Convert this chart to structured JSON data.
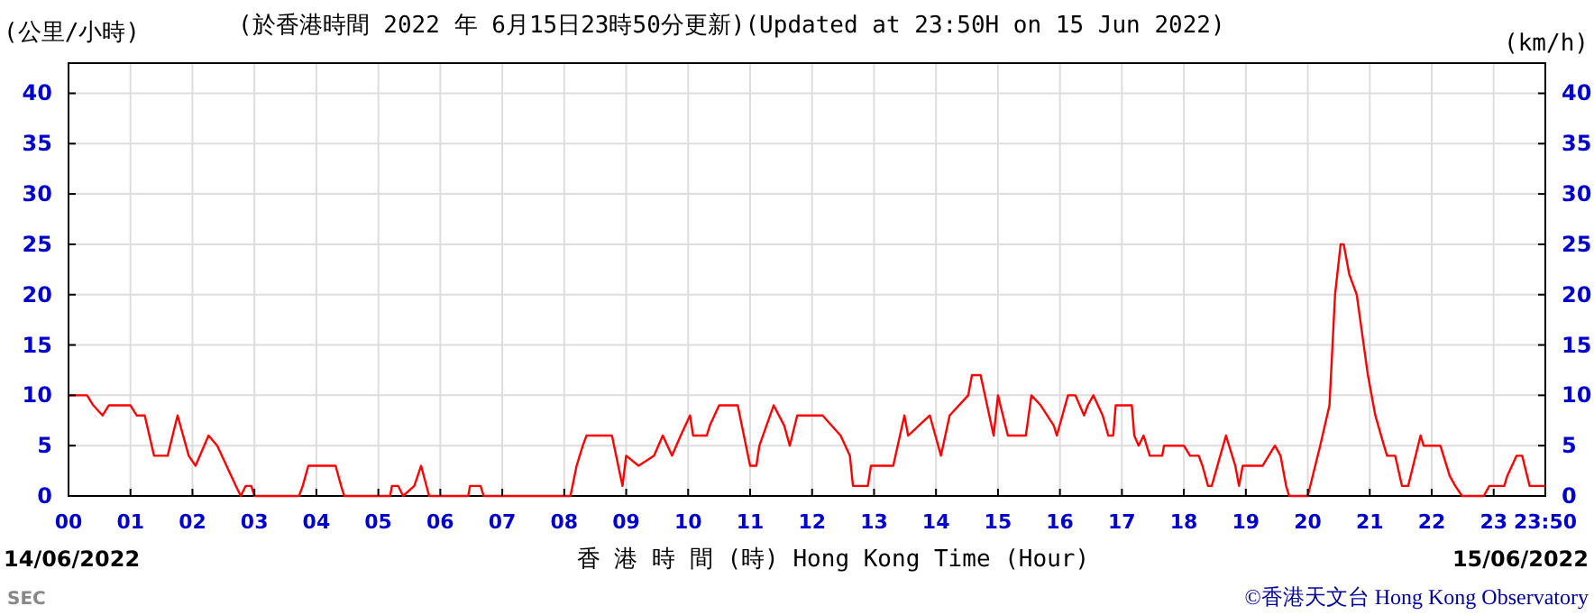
{
  "chart_data": {
    "type": "line",
    "title": "(於香港時間 2022 年 6月15日23時50分更新)(Updated at 23:50H on 15 Jun 2022)",
    "ylabel": "(公里/小時)",
    "y2label": "(km/h)",
    "xlabel": "香 港 時 間 (時) Hong Kong Time (Hour)",
    "annotations": [
      "14/06/2022",
      "15/06/2022",
      "SEC",
      "©香港天文台 Hong Kong Observatory"
    ],
    "xlim": [
      0,
      23.8333
    ],
    "xticks": [
      {
        "value": 0,
        "label": "00"
      },
      {
        "value": 1,
        "label": "01"
      },
      {
        "value": 2,
        "label": "02"
      },
      {
        "value": 3,
        "label": "03"
      },
      {
        "value": 4,
        "label": "04"
      },
      {
        "value": 5,
        "label": "05"
      },
      {
        "value": 6,
        "label": "06"
      },
      {
        "value": 7,
        "label": "07"
      },
      {
        "value": 8,
        "label": "08"
      },
      {
        "value": 9,
        "label": "09"
      },
      {
        "value": 10,
        "label": "10"
      },
      {
        "value": 11,
        "label": "11"
      },
      {
        "value": 12,
        "label": "12"
      },
      {
        "value": 13,
        "label": "13"
      },
      {
        "value": 14,
        "label": "14"
      },
      {
        "value": 15,
        "label": "15"
      },
      {
        "value": 16,
        "label": "16"
      },
      {
        "value": 17,
        "label": "17"
      },
      {
        "value": 18,
        "label": "18"
      },
      {
        "value": 19,
        "label": "19"
      },
      {
        "value": 20,
        "label": "20"
      },
      {
        "value": 21,
        "label": "21"
      },
      {
        "value": 22,
        "label": "22"
      },
      {
        "value": 23,
        "label": "23"
      },
      {
        "value": 23.8333,
        "label": "23:50"
      }
    ],
    "ylim": [
      0,
      43
    ],
    "yticks": [
      0,
      5,
      10,
      15,
      20,
      25,
      30,
      35,
      40
    ],
    "y2lim": [
      0,
      43
    ],
    "y2ticks": [
      0,
      5,
      10,
      15,
      20,
      25,
      30,
      35,
      40
    ],
    "grid": true,
    "series": [
      {
        "color": "#ff0000",
        "x": [
          0,
          0.3,
          0.4,
          0.55,
          0.65,
          1.0,
          1.1,
          1.23,
          1.38,
          1.6,
          1.76,
          1.94,
          2.05,
          2.26,
          2.4,
          2.55,
          2.7,
          2.78,
          2.86,
          2.95,
          3.0,
          3.72,
          3.78,
          3.87,
          4.31,
          4.4,
          4.45,
          5.19,
          5.22,
          5.32,
          5.4,
          5.58,
          5.69,
          5.82,
          6.45,
          6.48,
          6.65,
          6.7,
          8.1,
          8.2,
          8.3,
          8.36,
          8.77,
          8.94,
          9.0,
          9.2,
          9.45,
          9.59,
          9.74,
          9.88,
          10.03,
          10.08,
          10.3,
          10.35,
          10.5,
          10.8,
          10.9,
          11.0,
          11.1,
          11.15,
          11.38,
          11.55,
          11.64,
          11.76,
          12.17,
          12.46,
          12.61,
          12.66,
          12.9,
          12.95,
          13.31,
          13.49,
          13.55,
          13.9,
          14.08,
          14.22,
          14.52,
          14.58,
          14.72,
          14.93,
          15.0,
          15.16,
          15.45,
          15.54,
          15.69,
          15.9,
          15.95,
          16.13,
          16.25,
          16.39,
          16.45,
          16.54,
          16.69,
          16.78,
          16.86,
          16.9,
          17.16,
          17.2,
          17.27,
          17.35,
          17.45,
          17.65,
          17.68,
          18.0,
          18.1,
          18.24,
          18.3,
          18.39,
          18.45,
          18.68,
          18.83,
          18.89,
          18.95,
          19.27,
          19.47,
          19.56,
          19.65,
          19.7,
          20.0,
          20.2,
          20.35,
          20.44,
          20.53,
          20.58,
          20.67,
          20.79,
          20.88,
          20.97,
          21.09,
          21.23,
          21.28,
          21.41,
          21.52,
          21.62,
          21.82,
          21.87,
          22.14,
          22.29,
          22.38,
          22.49,
          22.84,
          22.93,
          23.17,
          23.22,
          23.37,
          23.46,
          23.58,
          23.83
        ],
        "values": [
          10,
          10,
          9,
          8,
          9,
          9,
          8,
          8,
          4,
          4,
          8,
          4,
          3,
          6,
          5,
          3,
          1,
          0,
          1,
          1,
          0,
          0,
          1,
          3,
          3,
          1,
          0,
          0,
          1,
          1,
          0,
          1,
          3,
          0,
          0,
          1,
          1,
          0,
          0,
          3,
          5,
          6,
          6,
          1,
          4,
          3,
          4,
          6,
          4,
          6,
          8,
          6,
          6,
          7,
          9,
          9,
          6,
          3,
          3,
          5,
          9,
          7,
          5,
          8,
          8,
          6,
          4,
          1,
          1,
          3,
          3,
          8,
          6,
          8,
          4,
          8,
          10,
          12,
          12,
          6,
          10,
          6,
          6,
          10,
          9,
          7,
          6,
          10,
          10,
          8,
          9,
          10,
          8,
          6,
          6,
          9,
          9,
          6,
          5,
          6,
          4,
          4,
          5,
          5,
          4,
          4,
          3,
          1,
          1,
          6,
          3,
          1,
          3,
          3,
          5,
          4,
          1,
          0,
          0,
          5,
          9,
          20,
          25,
          25,
          22,
          20,
          16,
          12,
          8,
          5,
          4,
          4,
          1,
          1,
          6,
          5,
          5,
          2,
          1,
          0,
          0,
          1,
          1,
          2,
          4,
          4,
          1,
          1
        ]
      }
    ]
  }
}
